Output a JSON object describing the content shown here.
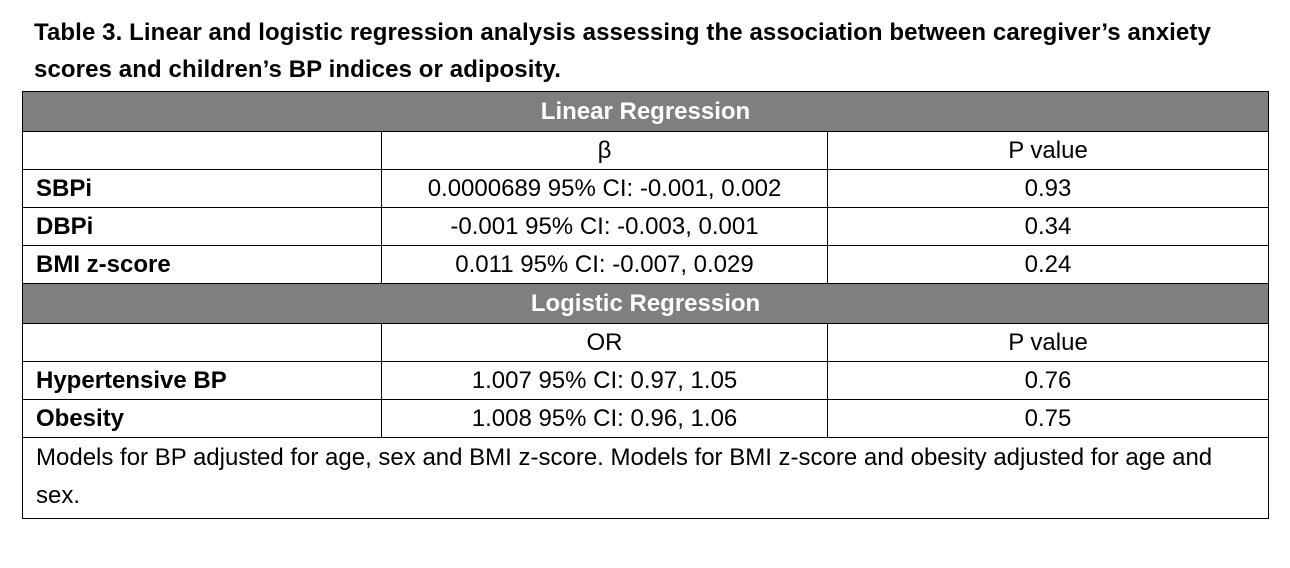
{
  "caption": "Table 3. Linear and logistic regression analysis assessing the association between caregiver’s anxiety scores and children’s BP indices or adiposity.",
  "linear": {
    "section_title": "Linear Regression",
    "headers": [
      "",
      "β",
      "P value"
    ],
    "rows": [
      {
        "label": "SBPi",
        "estimate": "0.0000689 95% CI: -0.001, 0.002",
        "p": "0.93"
      },
      {
        "label": "DBPi",
        "estimate": "-0.001 95% CI: -0.003, 0.001",
        "p": "0.34"
      },
      {
        "label": "BMI z-score",
        "estimate": "0.011 95% CI: -0.007, 0.029",
        "p": "0.24"
      }
    ]
  },
  "logistic": {
    "section_title": "Logistic Regression",
    "headers": [
      "",
      "OR",
      "P value"
    ],
    "rows": [
      {
        "label": "Hypertensive BP",
        "estimate": "1.007 95% CI: 0.97, 1.05",
        "p": "0.76"
      },
      {
        "label": "Obesity",
        "estimate": "1.008 95% CI: 0.96, 1.06",
        "p": "0.75"
      }
    ]
  },
  "footnote": "Models for BP adjusted for age, sex and BMI z-score.  Models for BMI z-score and obesity adjusted for age and sex.",
  "colors": {
    "section_background": "#7f7f7f",
    "section_text": "#ffffff",
    "border": "#000000"
  }
}
